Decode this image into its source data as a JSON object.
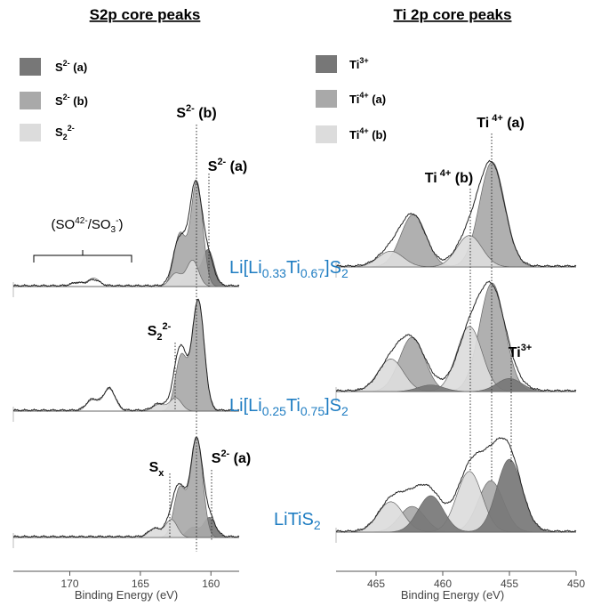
{
  "chart_data": [
    {
      "type": "area",
      "title": "S2p core peaks",
      "xlabel": "Binding Energy (eV)",
      "xlim": [
        174,
        158
      ],
      "xreversed": true,
      "xticks": [
        170,
        165,
        160
      ],
      "legend": [
        {
          "label": "S²⁻ (a)",
          "color": "#777777"
        },
        {
          "label": "S²⁻ (b)",
          "color": "#a9a9a9"
        },
        {
          "label": "S₂²⁻",
          "color": "#dcdcdc"
        }
      ],
      "legend_position": "top-left",
      "annotations": [
        "S²⁻ (b)",
        "S²⁻ (a)",
        "(SO₄²⁻/SO₃⁻)",
        "S₂²⁻",
        "Sₓ",
        "S²⁻ (a)"
      ],
      "reference_lines_eV": [
        161.0,
        160.2,
        162.8,
        163.0
      ],
      "series": [
        {
          "name": "Li[Li0.33Ti0.67]S2",
          "components": [
            {
              "component": "S²⁻ (a)",
              "peaks_eV": [
                160.2,
                161.4
              ],
              "relative_height": 0.35
            },
            {
              "component": "S²⁻ (b)",
              "peaks_eV": [
                161.0,
                162.2
              ],
              "relative_height": 1.0
            },
            {
              "component": "S₂²⁻",
              "peaks_eV": [
                161.3,
                162.5
              ],
              "relative_height": 0.25
            },
            {
              "component": "(SO₄²⁻/SO₃⁻)",
              "peaks_eV": [
                168.3,
                169.5
              ],
              "relative_height": 0.08
            }
          ]
        },
        {
          "name": "Li[Li0.25Ti0.75]S2",
          "components": [
            {
              "component": "S²⁻ (b)",
              "peaks_eV": [
                160.9,
                162.1
              ],
              "relative_height": 1.0
            },
            {
              "component": "S₂²⁻",
              "peaks_eV": [
                162.5,
                163.7
              ],
              "relative_height": 0.12
            },
            {
              "component": "(SO₄²⁻/SO₃⁻)",
              "peaks_eV": [
                167.2,
                168.4
              ],
              "relative_height": 0.2
            }
          ]
        },
        {
          "name": "LiTiS2",
          "components": [
            {
              "component": "S²⁻ (a)",
              "peaks_eV": [
                160.1,
                161.3
              ],
              "relative_height": 0.2
            },
            {
              "component": "S²⁻ (b)",
              "peaks_eV": [
                161.0,
                162.2
              ],
              "relative_height": 1.0
            },
            {
              "component": "Sₓ",
              "peaks_eV": [
                162.8,
                164.0
              ],
              "relative_height": 0.18
            }
          ]
        }
      ]
    },
    {
      "type": "area",
      "title": "Ti 2p core peaks",
      "xlabel": "Binding Energy (eV)",
      "xlim": [
        468,
        450
      ],
      "xreversed": true,
      "xticks": [
        465,
        460,
        455,
        450
      ],
      "legend": [
        {
          "label": "Ti³⁺",
          "color": "#777777"
        },
        {
          "label": "Ti⁴⁺ (a)",
          "color": "#a9a9a9"
        },
        {
          "label": "Ti⁴⁺ (b)",
          "color": "#dcdcdc"
        }
      ],
      "legend_position": "top-left",
      "annotations": [
        "Ti ⁴⁺ (a)",
        "Ti ⁴⁺ (b)",
        "Ti³⁺"
      ],
      "reference_lines_eV": [
        456.3,
        458.0,
        455.0
      ],
      "series": [
        {
          "name": "Li[Li0.33Ti0.67]S2",
          "components": [
            {
              "component": "Ti⁴⁺ (a)",
              "peaks_eV": [
                456.3,
                462.2
              ],
              "relative_height": 1.0
            },
            {
              "component": "Ti⁴⁺ (b)",
              "peaks_eV": [
                458.0,
                463.9
              ],
              "relative_height": 0.3
            }
          ]
        },
        {
          "name": "Li[Li0.25Ti0.75]S2",
          "components": [
            {
              "component": "Ti⁴⁺ (a)",
              "peaks_eV": [
                456.3,
                462.3
              ],
              "relative_height": 1.0
            },
            {
              "component": "Ti⁴⁺ (b)",
              "peaks_eV": [
                458.0,
                463.9
              ],
              "relative_height": 0.6
            },
            {
              "component": "Ti³⁺",
              "peaks_eV": [
                455.0,
                460.9
              ],
              "relative_height": 0.12
            }
          ]
        },
        {
          "name": "LiTiS2",
          "components": [
            {
              "component": "Ti⁴⁺ (a)",
              "peaks_eV": [
                456.4,
                462.3
              ],
              "relative_height": 0.55
            },
            {
              "component": "Ti⁴⁺ (b)",
              "peaks_eV": [
                458.0,
                463.9
              ],
              "relative_height": 0.65
            },
            {
              "component": "Ti³⁺",
              "peaks_eV": [
                455.0,
                460.9
              ],
              "relative_height": 0.78
            }
          ]
        }
      ]
    }
  ],
  "compounds": [
    {
      "prefix": "Li[Li",
      "s1": "0.33",
      "mid": "Ti",
      "s2": "0.67",
      "suffix": "]S",
      "s3": "2"
    },
    {
      "prefix": "Li[Li",
      "s1": "0.25",
      "mid": "Ti",
      "s2": "0.75",
      "suffix": "]S",
      "s3": "2"
    },
    {
      "prefix": "LiTiS",
      "s1": "",
      "mid": "",
      "s2": "",
      "suffix": "",
      "s3": "2"
    }
  ]
}
